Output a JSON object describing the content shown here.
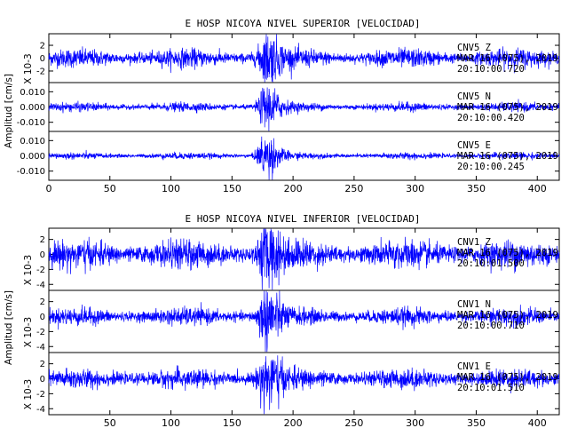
{
  "chart_data": [
    {
      "type": "line",
      "title": "E HOSP NICOYA NIVEL SUPERIOR [VELOCIDAD]",
      "ylabel": "Amplitud [cm/s]",
      "x_ticks": [
        0,
        50,
        100,
        150,
        200,
        250,
        300,
        350,
        400
      ],
      "xlim": [
        0,
        418
      ],
      "channels": [
        {
          "name": "CNV5 Z",
          "date": "MAR 16 (075), 2019",
          "time": "20:10:00.720",
          "scale_label": "X 10-3",
          "y_ticks": [
            "2",
            "0",
            "-2"
          ],
          "y_tick_values": [
            2,
            0,
            -2
          ],
          "ylim": [
            -3.8,
            3.8
          ],
          "noise_amplitude": 1.0,
          "event_peak_x": 178,
          "event_amplitude": 3.0
        },
        {
          "name": "CNV5 N",
          "date": "MAR 16 (075), 2019",
          "time": "20:10:00.420",
          "scale_label": "",
          "y_ticks": [
            "0.010",
            "0.000",
            "-0.010"
          ],
          "y_tick_values": [
            0.01,
            0.0,
            -0.01
          ],
          "ylim": [
            -0.016,
            0.016
          ],
          "noise_amplitude": 0.002,
          "event_peak_x": 178,
          "event_amplitude": 0.012
        },
        {
          "name": "CNV5 E",
          "date": "MAR 16 (075), 2019",
          "time": "20:10:00.245",
          "scale_label": "",
          "y_ticks": [
            "0.010",
            "0.000",
            "-0.010"
          ],
          "y_tick_values": [
            0.01,
            0.0,
            -0.01
          ],
          "ylim": [
            -0.016,
            0.016
          ],
          "noise_amplitude": 0.0015,
          "event_peak_x": 177,
          "event_amplitude": 0.012
        }
      ]
    },
    {
      "type": "line",
      "title": "E HOSP NICOYA NIVEL INFERIOR [VELOCIDAD]",
      "ylabel": "Amplitud [cm/s]",
      "x_ticks": [
        50,
        100,
        150,
        200,
        250,
        300,
        350,
        400
      ],
      "xlim": [
        0,
        418
      ],
      "channels": [
        {
          "name": "CNV1 Z",
          "date": "MAR 16 (075), 2019",
          "time": "20:10:01.500",
          "scale_label": "X 10-3",
          "y_ticks": [
            "2",
            "0",
            "-2",
            "-4"
          ],
          "y_tick_values": [
            2,
            0,
            -2,
            -4
          ],
          "ylim": [
            -4.8,
            3.5
          ],
          "noise_amplitude": 1.3,
          "event_peak_x": 178,
          "event_amplitude": 3.0
        },
        {
          "name": "CNV1 N",
          "date": "MAR 16 (075), 2019",
          "time": "20:10:00.710",
          "scale_label": "X 10-3",
          "y_ticks": [
            "2",
            "0",
            "-2",
            "-4"
          ],
          "y_tick_values": [
            2,
            0,
            -2,
            -4
          ],
          "ylim": [
            -4.8,
            3.5
          ],
          "noise_amplitude": 0.8,
          "event_peak_x": 178,
          "event_amplitude": 3.5
        },
        {
          "name": "CNV1 E",
          "date": "MAR 16 (075), 2019",
          "time": "20:10:01.510",
          "scale_label": "X 10-3",
          "y_ticks": [
            "2",
            "0",
            "-2",
            "-4"
          ],
          "y_tick_values": [
            2,
            0,
            -2,
            -4
          ],
          "ylim": [
            -4.8,
            3.5
          ],
          "noise_amplitude": 0.9,
          "event_peak_x": 178,
          "event_amplitude": 3.2
        }
      ]
    }
  ],
  "colors": {
    "trace": "#0000ff",
    "axis": "#000000",
    "background": "#ffffff"
  }
}
